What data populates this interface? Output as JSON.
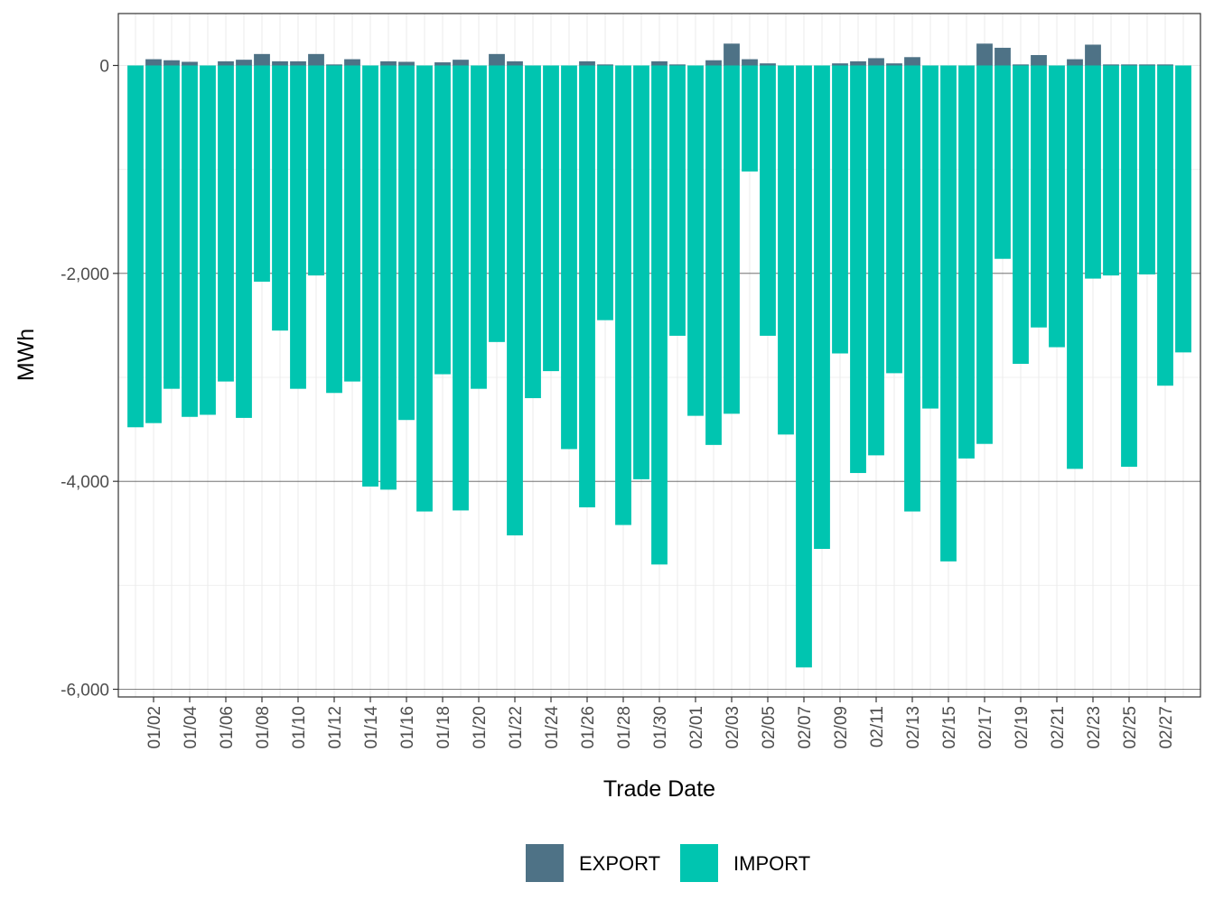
{
  "chart_data": {
    "type": "bar",
    "xlabel": "Trade Date",
    "ylabel": "MWh",
    "ylim": [
      -6080,
      500
    ],
    "yticks": [
      0,
      -2000,
      -4000,
      -6000
    ],
    "ytick_labels": [
      "0",
      "-2,000",
      "-4,000",
      "-6,000"
    ],
    "grid": true,
    "legend_position": "bottom",
    "colors": {
      "EXPORT": "#4e7286",
      "IMPORT": "#00c5b0"
    },
    "x": [
      "01/01",
      "01/02",
      "01/03",
      "01/04",
      "01/05",
      "01/06",
      "01/07",
      "01/08",
      "01/09",
      "01/10",
      "01/11",
      "01/12",
      "01/13",
      "01/14",
      "01/15",
      "01/16",
      "01/17",
      "01/18",
      "01/19",
      "01/20",
      "01/21",
      "01/22",
      "01/23",
      "01/24",
      "01/25",
      "01/26",
      "01/27",
      "01/28",
      "01/29",
      "01/30",
      "01/31",
      "02/01",
      "02/02",
      "02/03",
      "02/04",
      "02/05",
      "02/06",
      "02/07",
      "02/08",
      "02/09",
      "02/10",
      "02/11",
      "02/12",
      "02/13",
      "02/14",
      "02/15",
      "02/16",
      "02/17",
      "02/18",
      "02/19",
      "02/20",
      "02/21",
      "02/22",
      "02/23",
      "02/24",
      "02/25",
      "02/26",
      "02/27",
      "02/28"
    ],
    "xtick_labels": [
      "01/02",
      "01/04",
      "01/06",
      "01/08",
      "01/10",
      "01/12",
      "01/14",
      "01/16",
      "01/18",
      "01/20",
      "01/22",
      "01/24",
      "01/26",
      "01/28",
      "01/30",
      "02/01",
      "02/03",
      "02/05",
      "02/07",
      "02/09",
      "02/11",
      "02/13",
      "02/15",
      "02/17",
      "02/19",
      "02/21",
      "02/23",
      "02/25",
      "02/27"
    ],
    "series": [
      {
        "name": "EXPORT",
        "values": [
          0,
          60,
          50,
          35,
          0,
          40,
          55,
          110,
          40,
          40,
          110,
          10,
          60,
          0,
          40,
          35,
          0,
          30,
          55,
          0,
          110,
          40,
          0,
          0,
          0,
          40,
          10,
          0,
          0,
          40,
          10,
          0,
          50,
          210,
          60,
          20,
          0,
          0,
          0,
          20,
          40,
          70,
          20,
          80,
          0,
          0,
          0,
          210,
          170,
          10,
          100,
          0,
          60,
          200,
          10,
          10,
          10,
          10,
          0
        ]
      },
      {
        "name": "IMPORT",
        "values": [
          -3480,
          -3440,
          -3110,
          -3380,
          -3360,
          -3040,
          -3390,
          -2080,
          -2550,
          -3110,
          -2020,
          -3150,
          -3040,
          -4050,
          -4080,
          -3410,
          -4290,
          -2970,
          -4280,
          -3110,
          -2660,
          -4520,
          -3200,
          -2940,
          -3690,
          -4250,
          -2450,
          -4420,
          -3980,
          -4800,
          -2600,
          -3370,
          -3650,
          -3350,
          -1020,
          -2600,
          -3550,
          -5790,
          -4650,
          -2770,
          -3920,
          -3750,
          -2960,
          -4290,
          -3300,
          -4770,
          -3780,
          -3640,
          -1860,
          -2870,
          -2520,
          -2710,
          -3880,
          -2050,
          -2020,
          -3860,
          -2010,
          -3080,
          -2760
        ]
      }
    ]
  }
}
